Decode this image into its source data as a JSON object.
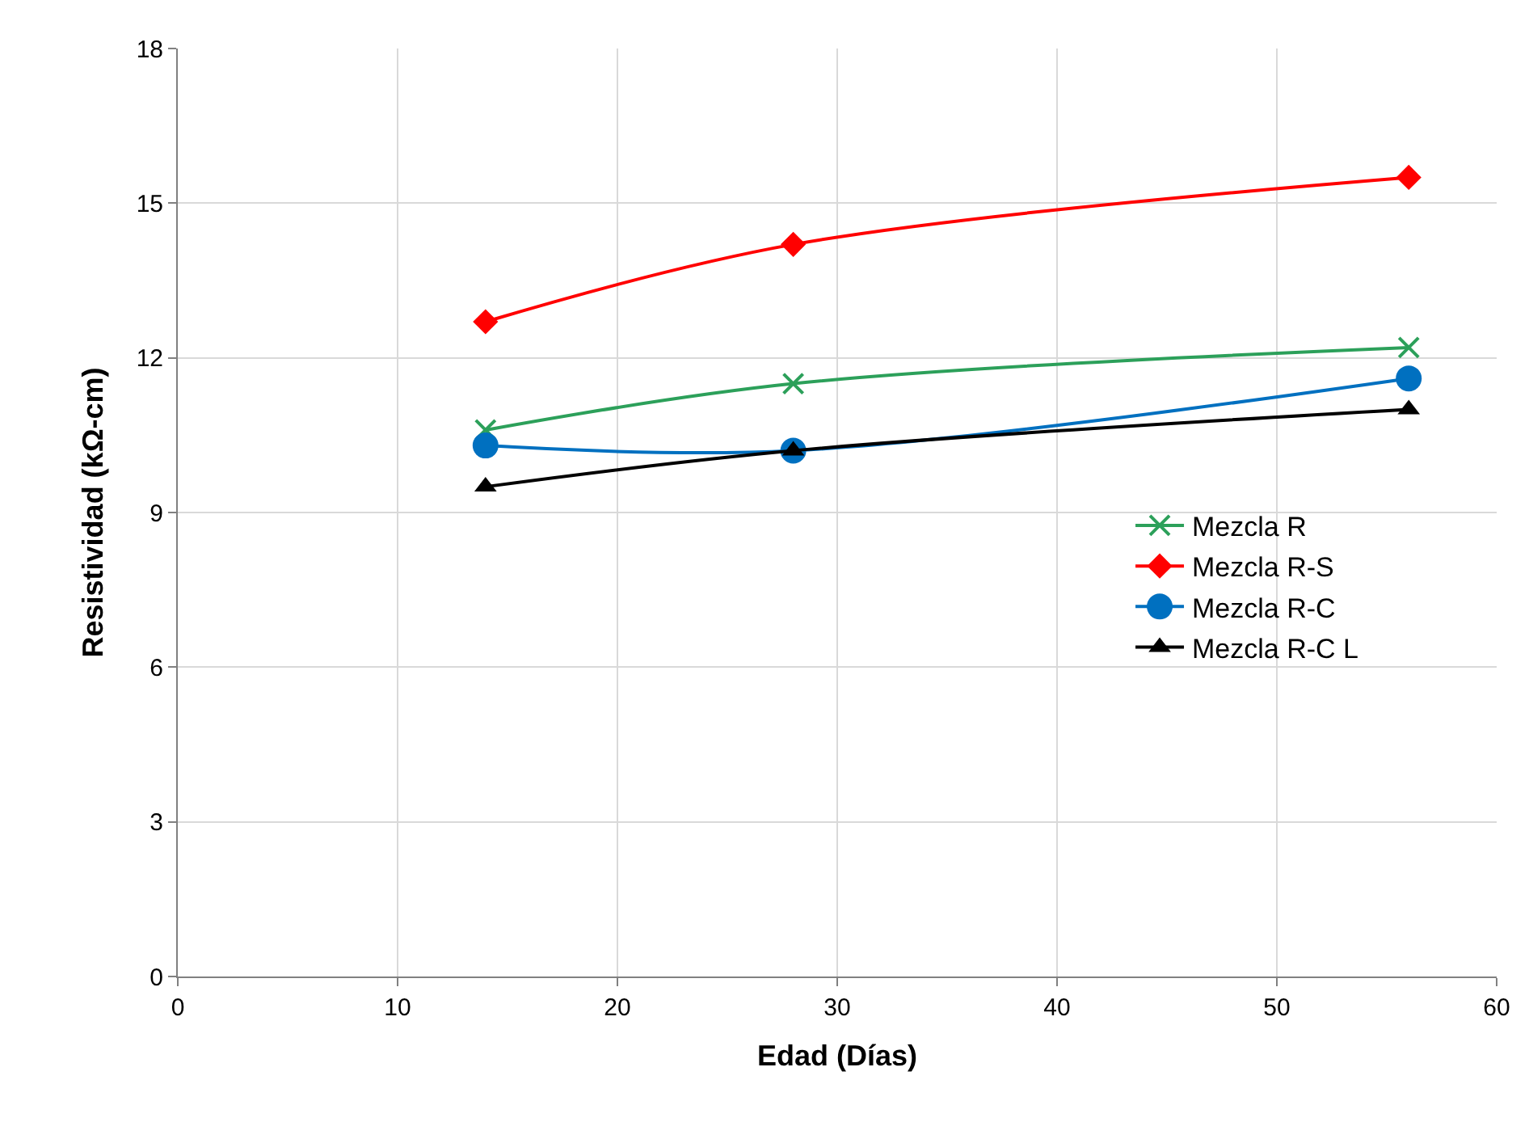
{
  "chart_data": {
    "type": "line",
    "xlabel": "Edad (Días)",
    "ylabel": "Resistividad (kΩ-cm)",
    "x": [
      14,
      28,
      56
    ],
    "series": [
      {
        "name": "Mezcla R",
        "color": "#2ca05a",
        "marker": "cross",
        "values": [
          10.6,
          11.5,
          12.2
        ]
      },
      {
        "name": "Mezcla R-S",
        "color": "#ff0000",
        "marker": "diamond",
        "values": [
          12.7,
          14.2,
          15.5
        ]
      },
      {
        "name": "Mezcla R-C",
        "color": "#0070c0",
        "marker": "circle",
        "values": [
          10.3,
          10.2,
          11.6
        ]
      },
      {
        "name": "Mezcla R-C L",
        "color": "#000000",
        "marker": "triangle",
        "values": [
          9.5,
          10.2,
          11.0
        ]
      }
    ],
    "xlim": [
      0,
      60
    ],
    "xticks": [
      0,
      10,
      20,
      30,
      40,
      50,
      60
    ],
    "ylim": [
      0,
      18
    ],
    "yticks": [
      0,
      3,
      6,
      9,
      12,
      15,
      18
    ],
    "grid": true,
    "legend": "right"
  }
}
